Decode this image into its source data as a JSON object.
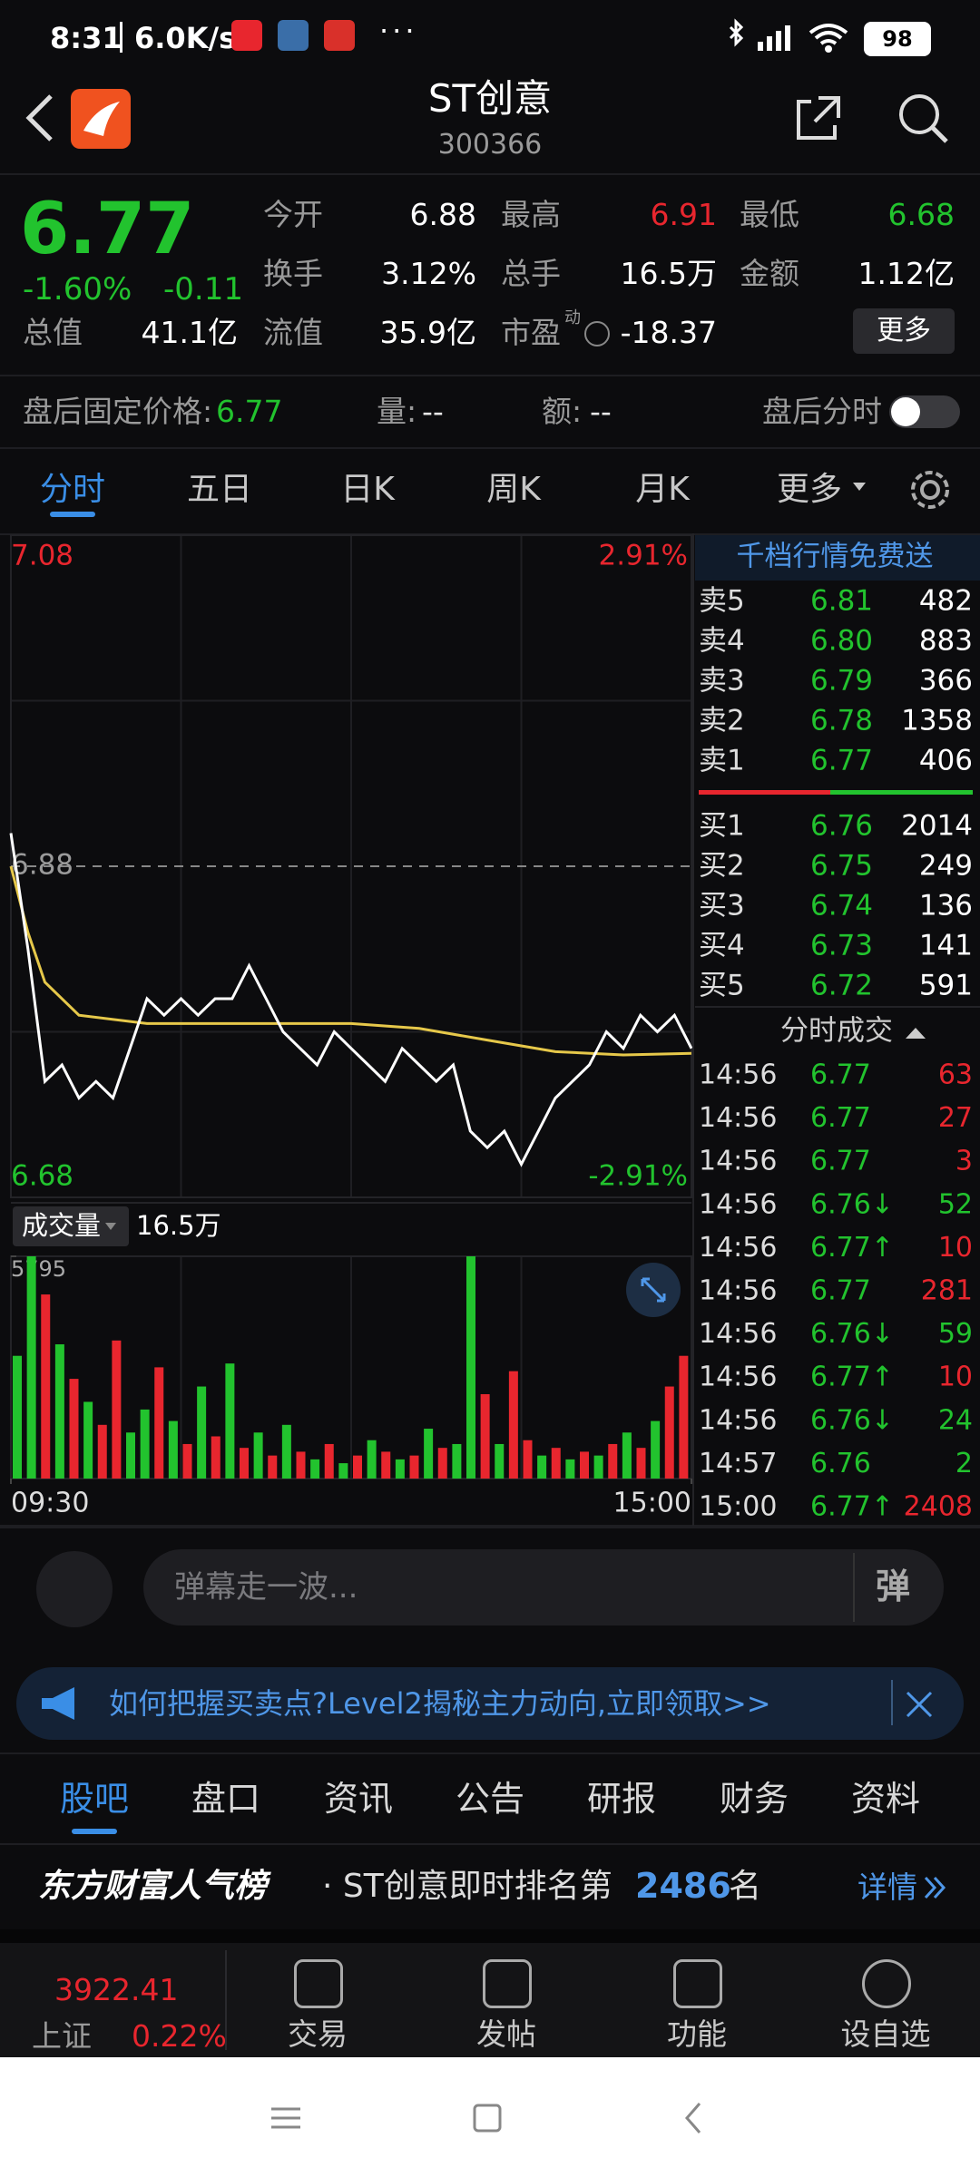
{
  "status_bar": {
    "time": "8:31",
    "speed": "6.0K/s",
    "battery": "98"
  },
  "header": {
    "title": "ST创意",
    "code": "300366"
  },
  "quote": {
    "price": "6.77",
    "change_pct": "-1.60%",
    "change": "-0.11",
    "color": "#22c32e",
    "fields": [
      {
        "label": "今开",
        "value": "6.88",
        "color": "#ffffff"
      },
      {
        "label": "最高",
        "value": "6.91",
        "color": "#e8262e"
      },
      {
        "label": "最低",
        "value": "6.68",
        "color": "#22c32e"
      },
      {
        "label": "换手",
        "value": "3.12%",
        "color": "#ffffff"
      },
      {
        "label": "总手",
        "value": "16.5万",
        "color": "#ffffff"
      },
      {
        "label": "金额",
        "value": "1.12亿",
        "color": "#ffffff"
      },
      {
        "label": "总值",
        "value": "41.1亿",
        "color": "#ffffff"
      },
      {
        "label": "流值",
        "value": "35.9亿",
        "color": "#ffffff"
      },
      {
        "label": "市盈",
        "sup": "动",
        "value": "-18.37",
        "color": "#ffffff"
      }
    ],
    "more_button": "更多"
  },
  "after_hours": {
    "price_label": "盘后固定价格:",
    "price": "6.77",
    "volume_label": "量:",
    "volume": "--",
    "amount_label": "额:",
    "amount": "--",
    "toggle_label": "盘后分时"
  },
  "tabs": [
    "分时",
    "五日",
    "日K",
    "周K",
    "月K",
    "更多"
  ],
  "chart_data": [
    {
      "type": "line",
      "ylim": [
        6.68,
        7.08
      ],
      "yticks": [
        6.68,
        6.88,
        7.08
      ],
      "ytick_colors": [
        "#22c32e",
        "#9a9a9a",
        "#e8262e"
      ],
      "y2lim": [
        -2.91,
        2.91
      ],
      "y2ticks": [
        {
          "value": -2.91,
          "label": "-2.91%"
        },
        {
          "value": 2.91,
          "label": "2.91%"
        }
      ],
      "y2tick_colors": [
        "#22c32e",
        "#e8262e"
      ],
      "xlim": [
        0,
        240
      ],
      "series": [
        {
          "color": "#ffffff",
          "x": [
            0,
            6,
            12,
            18,
            24,
            30,
            36,
            42,
            48,
            54,
            60,
            66,
            72,
            78,
            84,
            90,
            96,
            102,
            108,
            114,
            120,
            126,
            132,
            138,
            144,
            150,
            156,
            162,
            168,
            174,
            180,
            186,
            192,
            198,
            204,
            210,
            216,
            222,
            228,
            234,
            240
          ],
          "values": [
            6.9,
            6.83,
            6.75,
            6.76,
            6.74,
            6.75,
            6.74,
            6.77,
            6.8,
            6.79,
            6.8,
            6.79,
            6.8,
            6.8,
            6.82,
            6.8,
            6.78,
            6.77,
            6.76,
            6.78,
            6.77,
            6.76,
            6.75,
            6.77,
            6.76,
            6.75,
            6.76,
            6.72,
            6.71,
            6.72,
            6.7,
            6.72,
            6.74,
            6.75,
            6.76,
            6.78,
            6.77,
            6.79,
            6.78,
            6.79,
            6.77
          ]
        },
        {
          "color": "#e6c84a",
          "x": [
            0,
            6,
            12,
            24,
            48,
            72,
            96,
            120,
            144,
            168,
            192,
            216,
            240
          ],
          "values": [
            6.88,
            6.84,
            6.81,
            6.79,
            6.785,
            6.785,
            6.785,
            6.785,
            6.782,
            6.775,
            6.768,
            6.766,
            6.767
          ]
        }
      ]
    },
    {
      "type": "bar",
      "title": "成交量",
      "subtitle": "16.5万",
      "ylim": [
        0,
        5795
      ],
      "yticks": [
        5795
      ],
      "xlim": [
        0,
        240
      ],
      "xticks": [
        {
          "value": 0,
          "label": "09:30"
        },
        {
          "value": 240,
          "label": "15:00"
        }
      ],
      "x": [
        0,
        5,
        10,
        15,
        20,
        25,
        30,
        35,
        40,
        45,
        50,
        55,
        60,
        65,
        70,
        75,
        80,
        85,
        90,
        95,
        100,
        105,
        110,
        115,
        120,
        125,
        130,
        135,
        140,
        145,
        150,
        155,
        160,
        165,
        170,
        175,
        180,
        185,
        190,
        195,
        200,
        205,
        210,
        215,
        220,
        225,
        230,
        235
      ],
      "values": [
        3200,
        5795,
        4800,
        3500,
        2600,
        2000,
        1400,
        3600,
        1200,
        1800,
        2900,
        1500,
        900,
        2400,
        1100,
        3000,
        800,
        1200,
        600,
        1400,
        700,
        500,
        900,
        400,
        600,
        1000,
        700,
        500,
        600,
        1300,
        800,
        900,
        5795,
        2200,
        900,
        2800,
        1000,
        600,
        800,
        500,
        700,
        600,
        900,
        1200,
        800,
        1500,
        2400,
        3200
      ],
      "colors": [
        "#22c32e",
        "#22c32e",
        "#e8262e",
        "#22c32e",
        "#e8262e",
        "#22c32e",
        "#e8262e",
        "#e8262e",
        "#22c32e",
        "#22c32e",
        "#e8262e",
        "#22c32e",
        "#e8262e",
        "#22c32e",
        "#e8262e",
        "#22c32e",
        "#e8262e",
        "#22c32e",
        "#e8262e",
        "#22c32e",
        "#e8262e",
        "#22c32e",
        "#e8262e",
        "#22c32e",
        "#e8262e",
        "#22c32e",
        "#e8262e",
        "#22c32e",
        "#e8262e",
        "#22c32e",
        "#e8262e",
        "#22c32e",
        "#22c32e",
        "#e8262e",
        "#22c32e",
        "#e8262e",
        "#e8262e",
        "#22c32e",
        "#e8262e",
        "#22c32e",
        "#e8262e",
        "#22c32e",
        "#e8262e",
        "#22c32e",
        "#e8262e",
        "#22c32e",
        "#e8262e",
        "#e8262e"
      ]
    }
  ],
  "order_book": {
    "promo": "千档行情免费送",
    "sells": [
      {
        "label": "卖5",
        "price": "6.81",
        "volume": "482"
      },
      {
        "label": "卖4",
        "price": "6.80",
        "volume": "883"
      },
      {
        "label": "卖3",
        "price": "6.79",
        "volume": "366"
      },
      {
        "label": "卖2",
        "price": "6.78",
        "volume": "1358"
      },
      {
        "label": "卖1",
        "price": "6.77",
        "volume": "406"
      }
    ],
    "buys": [
      {
        "label": "买1",
        "price": "6.76",
        "volume": "2014"
      },
      {
        "label": "买2",
        "price": "6.75",
        "volume": "249"
      },
      {
        "label": "买3",
        "price": "6.74",
        "volume": "136"
      },
      {
        "label": "买4",
        "price": "6.73",
        "volume": "141"
      },
      {
        "label": "买5",
        "price": "6.72",
        "volume": "591"
      }
    ]
  },
  "trades": {
    "title": "分时成交",
    "rows": [
      {
        "time": "14:56",
        "price": "6.77",
        "volume": "63",
        "color": "#e8262e"
      },
      {
        "time": "14:56",
        "price": "6.77",
        "volume": "27",
        "color": "#e8262e"
      },
      {
        "time": "14:56",
        "price": "6.77",
        "volume": "3",
        "color": "#e8262e"
      },
      {
        "time": "14:56",
        "price": "6.76↓",
        "volume": "52",
        "color": "#22c32e"
      },
      {
        "time": "14:56",
        "price": "6.77↑",
        "volume": "10",
        "color": "#e8262e"
      },
      {
        "time": "14:56",
        "price": "6.77",
        "volume": "281",
        "color": "#e8262e"
      },
      {
        "time": "14:56",
        "price": "6.76↓",
        "volume": "59",
        "color": "#22c32e"
      },
      {
        "time": "14:56",
        "price": "6.77↑",
        "volume": "10",
        "color": "#e8262e"
      },
      {
        "time": "14:56",
        "price": "6.76↓",
        "volume": "24",
        "color": "#22c32e"
      },
      {
        "time": "14:57",
        "price": "6.76",
        "volume": "2",
        "color": "#22c32e"
      },
      {
        "time": "15:00",
        "price": "6.77↑",
        "volume": "2408",
        "color": "#e8262e"
      }
    ]
  },
  "barrage": {
    "placeholder": "弹幕走一波...",
    "button": "弹"
  },
  "banner": {
    "text": "如何把握买卖点?Level2揭秘主力动向,立即领取>>"
  },
  "section_tabs": [
    "股吧",
    "盘口",
    "资讯",
    "公告",
    "研报",
    "财务",
    "资料"
  ],
  "ranking": {
    "brand": "东方财富人气榜",
    "text": "· ST创意即时排名第",
    "rank": "2486",
    "unit": "名",
    "details": "详情"
  },
  "bottom_nav": {
    "index_value": "3922.41",
    "index_name": "上证",
    "index_change": "0.22%",
    "items": [
      "交易",
      "发帖",
      "功能",
      "设自选"
    ]
  }
}
